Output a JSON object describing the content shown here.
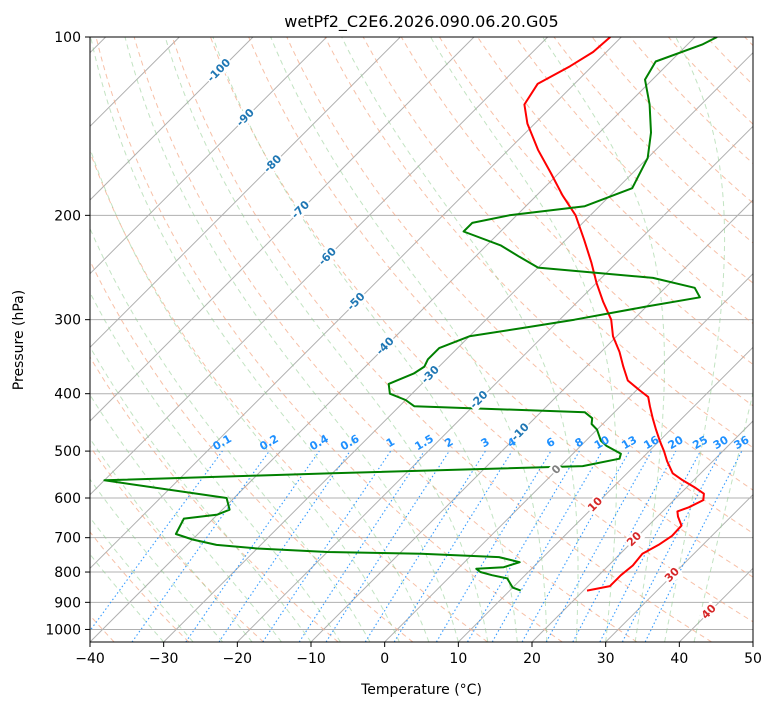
{
  "chart_data": {
    "type": "line",
    "chart_kind": "skew-T log-p",
    "title": "wetPf2_C2E6.2026.090.06.20.G05",
    "xlabel": "Temperature (°C)",
    "ylabel": "Pressure (hPa)",
    "xlim": [
      -40,
      50
    ],
    "ylim": [
      1050,
      100
    ],
    "y_scale": "log",
    "grid": true,
    "x_ticks": [
      "−40",
      "−30",
      "−20",
      "−10",
      "0",
      "10",
      "20",
      "30",
      "40",
      "50"
    ],
    "y_ticks": [
      "100",
      "200",
      "300",
      "400",
      "500",
      "600",
      "700",
      "800",
      "900",
      "1000"
    ],
    "x_tick_values": [
      -40,
      -30,
      -20,
      -10,
      0,
      10,
      20,
      30,
      40,
      50
    ],
    "y_tick_values": [
      100,
      200,
      300,
      400,
      500,
      600,
      700,
      800,
      900,
      1000
    ],
    "series": [
      {
        "role": "temperature",
        "color": "#ff0000",
        "points": [
          [
            860,
            20.5
          ],
          [
            845,
            23.0
          ],
          [
            810,
            23.0
          ],
          [
            780,
            23.3
          ],
          [
            745,
            23.0
          ],
          [
            720,
            24.0
          ],
          [
            695,
            24.6
          ],
          [
            668,
            24.5
          ],
          [
            645,
            22.8
          ],
          [
            632,
            22.0
          ],
          [
            622,
            23.0
          ],
          [
            605,
            24.0
          ],
          [
            590,
            23.2
          ],
          [
            575,
            21.0
          ],
          [
            560,
            18.5
          ],
          [
            545,
            16.2
          ],
          [
            520,
            13.8
          ],
          [
            500,
            12.0
          ],
          [
            480,
            10.0
          ],
          [
            460,
            8.0
          ],
          [
            440,
            6.0
          ],
          [
            420,
            4.0
          ],
          [
            405,
            2.5
          ],
          [
            395,
            0.5
          ],
          [
            380,
            -2.5
          ],
          [
            360,
            -5.0
          ],
          [
            340,
            -7.5
          ],
          [
            320,
            -10.5
          ],
          [
            300,
            -13.0
          ],
          [
            280,
            -16.5
          ],
          [
            260,
            -20.0
          ],
          [
            240,
            -23.5
          ],
          [
            220,
            -27.5
          ],
          [
            200,
            -32.0
          ],
          [
            185,
            -36.5
          ],
          [
            170,
            -41.0
          ],
          [
            155,
            -46.0
          ],
          [
            140,
            -51.0
          ],
          [
            130,
            -54.0
          ],
          [
            120,
            -55.0
          ],
          [
            112,
            -53.0
          ],
          [
            106,
            -51.8
          ],
          [
            100,
            -51.5
          ]
        ]
      },
      {
        "role": "dewpoint",
        "color": "#008000",
        "points": [
          [
            860,
            11.5
          ],
          [
            850,
            10.0
          ],
          [
            820,
            8.0
          ],
          [
            810,
            5.5
          ],
          [
            800,
            3.5
          ],
          [
            790,
            2.5
          ],
          [
            785,
            6.0
          ],
          [
            770,
            7.5
          ],
          [
            755,
            4.0
          ],
          [
            745,
            -7.0
          ],
          [
            740,
            -20.0
          ],
          [
            730,
            -30.0
          ],
          [
            720,
            -36.0
          ],
          [
            705,
            -40.0
          ],
          [
            690,
            -43.0
          ],
          [
            650,
            -44.0
          ],
          [
            640,
            -40.0
          ],
          [
            628,
            -39.0
          ],
          [
            600,
            -41.0
          ],
          [
            560,
            -60.0
          ],
          [
            550,
            -40.0
          ],
          [
            545,
            -30.0
          ],
          [
            530,
            3.0
          ],
          [
            515,
            7.0
          ],
          [
            505,
            6.5
          ],
          [
            490,
            3.5
          ],
          [
            480,
            2.0
          ],
          [
            460,
            0.0
          ],
          [
            450,
            -1.5
          ],
          [
            440,
            -2.2
          ],
          [
            430,
            -4.0
          ],
          [
            420,
            -28.0
          ],
          [
            410,
            -30.0
          ],
          [
            400,
            -33.0
          ],
          [
            385,
            -34.5
          ],
          [
            370,
            -32.5
          ],
          [
            360,
            -32.0
          ],
          [
            350,
            -32.5
          ],
          [
            335,
            -32.5
          ],
          [
            320,
            -30.0
          ],
          [
            310,
            -24.0
          ],
          [
            300,
            -18.0
          ],
          [
            285,
            -10.0
          ],
          [
            275,
            -4.0
          ],
          [
            265,
            -6.0
          ],
          [
            255,
            -13.0
          ],
          [
            245,
            -30.0
          ],
          [
            235,
            -34.0
          ],
          [
            225,
            -38.0
          ],
          [
            213,
            -45.0
          ],
          [
            206,
            -45.0
          ],
          [
            200,
            -41.0
          ],
          [
            193,
            -32.0
          ],
          [
            180,
            -28.0
          ],
          [
            160,
            -30.0
          ],
          [
            145,
            -33.0
          ],
          [
            130,
            -37.0
          ],
          [
            118,
            -41.0
          ],
          [
            110,
            -42.0
          ],
          [
            103,
            -38.0
          ],
          [
            100,
            -37.0
          ]
        ]
      }
    ],
    "reference_lines": {
      "dry_adiabats_theta_C": [
        -40,
        -30,
        -20,
        -10,
        0,
        10,
        20,
        30,
        40,
        50,
        60,
        70,
        80,
        90,
        100,
        110,
        120,
        130,
        140,
        150,
        160,
        170,
        180,
        190,
        200
      ],
      "mixing_ratio_lines_gkg": [
        0.1,
        0.2,
        0.4,
        0.6,
        1,
        1.5,
        2,
        3,
        4,
        6,
        8,
        10,
        13,
        16,
        20,
        25,
        30,
        36
      ]
    },
    "annotations": {
      "isotherm_labels": [
        {
          "text": "-100",
          "t": -100,
          "p": 114
        },
        {
          "text": "-90",
          "t": -90,
          "p": 137
        },
        {
          "text": "-80",
          "t": -80,
          "p": 164
        },
        {
          "text": "-70",
          "t": -70,
          "p": 196
        },
        {
          "text": "-60",
          "t": -60,
          "p": 235
        },
        {
          "text": "-50",
          "t": -50,
          "p": 280
        },
        {
          "text": "-40",
          "t": -40,
          "p": 333
        },
        {
          "text": "-30",
          "t": -30,
          "p": 372
        },
        {
          "text": "-20",
          "t": -20,
          "p": 410
        },
        {
          "text": "-10",
          "t": -10,
          "p": 465
        },
        {
          "text": "0",
          "t": 0,
          "p": 538
        },
        {
          "text": "10",
          "t": 10,
          "p": 616
        },
        {
          "text": "20",
          "t": 20,
          "p": 705
        },
        {
          "text": "30",
          "t": 30,
          "p": 810
        },
        {
          "text": "40",
          "t": 40,
          "p": 935
        }
      ],
      "isotherm_label_colors": {
        "cold": "#1f77b4",
        "zero": "#808080",
        "warm": "#d62728"
      },
      "mixing_ratio_labels": [
        "0.1",
        "0.2",
        "0.4",
        "0.6",
        "1",
        "1.5",
        "2",
        "3",
        "4",
        "6",
        "8",
        "10",
        "13",
        "16",
        "20",
        "25",
        "30",
        "36"
      ],
      "mixing_ratio_label_pressure": 500,
      "mixing_ratio_label_color": "#1e90ff"
    }
  }
}
